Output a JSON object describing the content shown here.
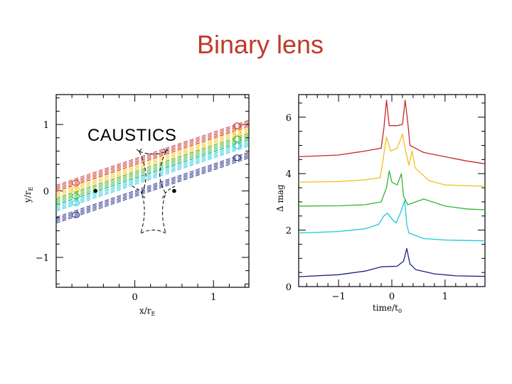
{
  "slide": {
    "title": "Binary lens",
    "annotation": "CAUSTICS"
  },
  "chart_data": [
    {
      "type": "line",
      "title": "",
      "xlabel": "x/r",
      "xlabel_sub": "E",
      "ylabel": "y/r",
      "ylabel_sub": "E",
      "xlim": [
        -1.0,
        1.45
      ],
      "ylim": [
        -1.45,
        1.45
      ],
      "x_ticks": [
        {
          "value": 0,
          "label": "0"
        },
        {
          "value": 1,
          "label": "1"
        }
      ],
      "y_ticks": [
        {
          "value": -1,
          "label": "−1"
        },
        {
          "value": 0,
          "label": "0"
        },
        {
          "value": 1,
          "label": "1"
        }
      ],
      "lens_masses": [
        {
          "x": -0.5,
          "y": 0.0
        },
        {
          "x": 0.5,
          "y": 0.0
        }
      ],
      "source_trajectories": [
        {
          "name": "red",
          "color": "#c62828",
          "y_at_x0": 0.44
        },
        {
          "name": "yellow",
          "color": "#f2c01a",
          "y_at_x0": 0.34
        },
        {
          "name": "green",
          "color": "#33b533",
          "y_at_x0": 0.24
        },
        {
          "name": "cyan",
          "color": "#1ec8dc",
          "y_at_x0": 0.14
        },
        {
          "name": "blue",
          "color": "#1a237e",
          "y_at_x0": -0.04
        }
      ],
      "trajectory_slope": 0.4
    },
    {
      "type": "line",
      "title": "",
      "xlabel": "time/t",
      "xlabel_sub": "0",
      "ylabel": "Δ mag",
      "xlim": [
        -1.75,
        1.75
      ],
      "ylim": [
        0,
        6.8
      ],
      "x_ticks": [
        {
          "value": -1,
          "label": "−1"
        },
        {
          "value": 0,
          "label": "0"
        },
        {
          "value": 1,
          "label": "1"
        }
      ],
      "y_ticks": [
        {
          "value": 0,
          "label": "0"
        },
        {
          "value": 2,
          "label": "2"
        },
        {
          "value": 4,
          "label": "4"
        },
        {
          "value": 6,
          "label": "6"
        }
      ],
      "series": [
        {
          "name": "red",
          "color": "#c62828",
          "points": [
            [
              -1.75,
              4.6
            ],
            [
              -1.0,
              4.66
            ],
            [
              -0.5,
              4.8
            ],
            [
              -0.2,
              4.9
            ],
            [
              -0.15,
              5.6
            ],
            [
              -0.1,
              6.6
            ],
            [
              -0.05,
              5.7
            ],
            [
              0.1,
              5.7
            ],
            [
              0.2,
              5.75
            ],
            [
              0.25,
              6.6
            ],
            [
              0.3,
              5.8
            ],
            [
              0.34,
              5.0
            ],
            [
              0.6,
              4.75
            ],
            [
              1.0,
              4.6
            ],
            [
              1.4,
              4.45
            ],
            [
              1.75,
              4.35
            ]
          ]
        },
        {
          "name": "yellow",
          "color": "#f2c01a",
          "points": [
            [
              -1.75,
              3.7
            ],
            [
              -1.0,
              3.72
            ],
            [
              -0.5,
              3.78
            ],
            [
              -0.22,
              3.85
            ],
            [
              -0.18,
              4.3
            ],
            [
              -0.1,
              5.3
            ],
            [
              -0.02,
              4.8
            ],
            [
              0.1,
              4.9
            ],
            [
              0.2,
              5.4
            ],
            [
              0.26,
              4.8
            ],
            [
              0.32,
              4.3
            ],
            [
              0.38,
              4.8
            ],
            [
              0.44,
              4.2
            ],
            [
              0.7,
              3.75
            ],
            [
              1.0,
              3.6
            ],
            [
              1.75,
              3.55
            ]
          ]
        },
        {
          "name": "green",
          "color": "#33b533",
          "points": [
            [
              -1.75,
              2.85
            ],
            [
              -1.0,
              2.86
            ],
            [
              -0.5,
              2.9
            ],
            [
              -0.2,
              3.0
            ],
            [
              -0.1,
              3.5
            ],
            [
              -0.05,
              4.1
            ],
            [
              0.0,
              3.7
            ],
            [
              0.1,
              3.6
            ],
            [
              0.18,
              4.0
            ],
            [
              0.22,
              3.2
            ],
            [
              0.3,
              2.9
            ],
            [
              0.6,
              3.1
            ],
            [
              1.0,
              2.85
            ],
            [
              1.4,
              2.75
            ],
            [
              1.75,
              2.72
            ]
          ]
        },
        {
          "name": "cyan",
          "color": "#1ec8dc",
          "points": [
            [
              -1.75,
              1.9
            ],
            [
              -1.0,
              1.95
            ],
            [
              -0.5,
              2.05
            ],
            [
              -0.25,
              2.2
            ],
            [
              -0.15,
              2.5
            ],
            [
              -0.08,
              2.6
            ],
            [
              0.0,
              2.4
            ],
            [
              0.08,
              2.25
            ],
            [
              0.16,
              2.6
            ],
            [
              0.24,
              3.05
            ],
            [
              0.28,
              2.2
            ],
            [
              0.32,
              1.9
            ],
            [
              0.6,
              1.7
            ],
            [
              1.0,
              1.65
            ],
            [
              1.75,
              1.62
            ]
          ]
        },
        {
          "name": "blue",
          "color": "#1a237e",
          "points": [
            [
              -1.75,
              0.35
            ],
            [
              -1.0,
              0.42
            ],
            [
              -0.5,
              0.55
            ],
            [
              -0.2,
              0.7
            ],
            [
              0.1,
              0.72
            ],
            [
              0.22,
              0.9
            ],
            [
              0.28,
              1.35
            ],
            [
              0.34,
              0.8
            ],
            [
              0.45,
              0.6
            ],
            [
              0.8,
              0.45
            ],
            [
              1.2,
              0.38
            ],
            [
              1.75,
              0.36
            ]
          ]
        }
      ]
    }
  ]
}
